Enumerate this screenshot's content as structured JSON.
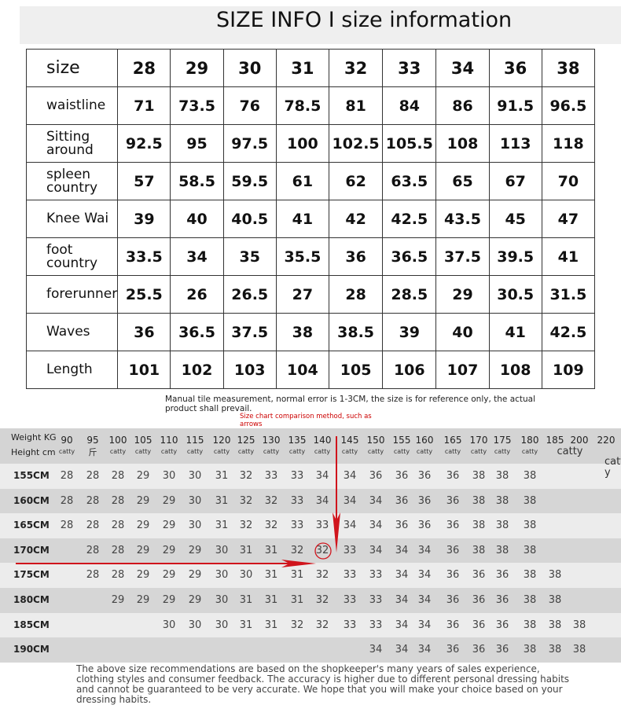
{
  "title": "SIZE INFO I size information",
  "size_table": {
    "rows": [
      {
        "label": "size",
        "values": [
          "28",
          "29",
          "30",
          "31",
          "32",
          "33",
          "34",
          "36",
          "38"
        ]
      },
      {
        "label": "waistline",
        "values": [
          "71",
          "73.5",
          "76",
          "78.5",
          "81",
          "84",
          "86",
          "91.5",
          "96.5"
        ]
      },
      {
        "label": "Sitting around",
        "values": [
          "92.5",
          "95",
          "97.5",
          "100",
          "102.5",
          "105.5",
          "108",
          "113",
          "118"
        ]
      },
      {
        "label": "spleen country",
        "values": [
          "57",
          "58.5",
          "59.5",
          "61",
          "62",
          "63.5",
          "65",
          "67",
          "70"
        ]
      },
      {
        "label": "Knee Wai",
        "values": [
          "39",
          "40",
          "40.5",
          "41",
          "42",
          "42.5",
          "43.5",
          "45",
          "47"
        ]
      },
      {
        "label": "foot country",
        "values": [
          "33.5",
          "34",
          "35",
          "35.5",
          "36",
          "36.5",
          "37.5",
          "39.5",
          "41"
        ]
      },
      {
        "label": "forerunner",
        "values": [
          "25.5",
          "26",
          "26.5",
          "27",
          "28",
          "28.5",
          "29",
          "30.5",
          "31.5"
        ]
      },
      {
        "label": "Waves",
        "values": [
          "36",
          "36.5",
          "37.5",
          "38",
          "38.5",
          "39",
          "40",
          "41",
          "42.5"
        ]
      },
      {
        "label": "Length",
        "values": [
          "101",
          "102",
          "103",
          "104",
          "105",
          "106",
          "107",
          "108",
          "109"
        ]
      }
    ]
  },
  "note": "Manual tile measurement, normal error is 1-3CM, the size is for reference only, the actual product shall prevail.",
  "red_note": "Size chart comparison method, such as arrows",
  "rec_table": {
    "weight_label": "Weight KG",
    "height_label": "Height cm",
    "weights": [
      "90",
      "95",
      "100",
      "105",
      "110",
      "115",
      "120",
      "125",
      "130",
      "135",
      "140",
      "145",
      "150",
      "155",
      "160",
      "165",
      "170",
      "175",
      "180",
      "185",
      "200",
      "220"
    ],
    "units": [
      "catty",
      "斤",
      "catty",
      "catty",
      "catty",
      "catty",
      "catty",
      "catty",
      "catty",
      "catty",
      "catty",
      "catty",
      "catty",
      "catty",
      "catty",
      "catty",
      "catty",
      "catty",
      "catty",
      "catty",
      "",
      "catty"
    ],
    "rows": [
      {
        "height": "155CM",
        "values": [
          "28",
          "28",
          "28",
          "29",
          "30",
          "30",
          "31",
          "32",
          "33",
          "33",
          "34",
          "34",
          "36",
          "36",
          "36",
          "36",
          "38",
          "38",
          "38",
          "",
          "",
          ""
        ]
      },
      {
        "height": "160CM",
        "values": [
          "28",
          "28",
          "28",
          "29",
          "29",
          "30",
          "31",
          "32",
          "32",
          "33",
          "34",
          "34",
          "34",
          "36",
          "36",
          "36",
          "38",
          "38",
          "38",
          "",
          "",
          ""
        ]
      },
      {
        "height": "165CM",
        "values": [
          "28",
          "28",
          "28",
          "29",
          "29",
          "30",
          "31",
          "32",
          "32",
          "33",
          "33",
          "34",
          "34",
          "36",
          "36",
          "36",
          "38",
          "38",
          "38",
          "",
          "",
          ""
        ]
      },
      {
        "height": "170CM",
        "values": [
          "",
          "28",
          "28",
          "29",
          "29",
          "29",
          "30",
          "31",
          "31",
          "32",
          "32",
          "33",
          "34",
          "34",
          "34",
          "36",
          "38",
          "38",
          "38",
          "",
          "",
          ""
        ]
      },
      {
        "height": "175CM",
        "values": [
          "",
          "28",
          "28",
          "29",
          "29",
          "29",
          "30",
          "30",
          "31",
          "31",
          "32",
          "33",
          "33",
          "34",
          "34",
          "36",
          "36",
          "36",
          "38",
          "38",
          "",
          ""
        ]
      },
      {
        "height": "180CM",
        "values": [
          "",
          "",
          "29",
          "29",
          "29",
          "29",
          "30",
          "31",
          "31",
          "31",
          "32",
          "33",
          "33",
          "34",
          "34",
          "36",
          "36",
          "36",
          "38",
          "38",
          "",
          ""
        ]
      },
      {
        "height": "185CM",
        "values": [
          "",
          "",
          "",
          "",
          "30",
          "30",
          "30",
          "31",
          "31",
          "32",
          "32",
          "33",
          "33",
          "34",
          "34",
          "36",
          "36",
          "36",
          "38",
          "38",
          "38",
          ""
        ]
      },
      {
        "height": "190CM",
        "values": [
          "",
          "",
          "",
          "",
          "",
          "",
          "",
          "",
          "",
          "",
          "",
          "",
          "34",
          "34",
          "34",
          "36",
          "36",
          "36",
          "38",
          "38",
          "38",
          ""
        ]
      }
    ],
    "highlight": {
      "height": "170CM",
      "weight": "140",
      "value": "32"
    }
  },
  "arrow_color": "#d0141c",
  "footer": "The above size recommendations are based on the shopkeeper's many years of sales experience, clothing styles and consumer feedback. The accuracy is higher due to different personal dressing habits and cannot be guaranteed to be very accurate. We hope that you will make your choice based on your dressing habits."
}
